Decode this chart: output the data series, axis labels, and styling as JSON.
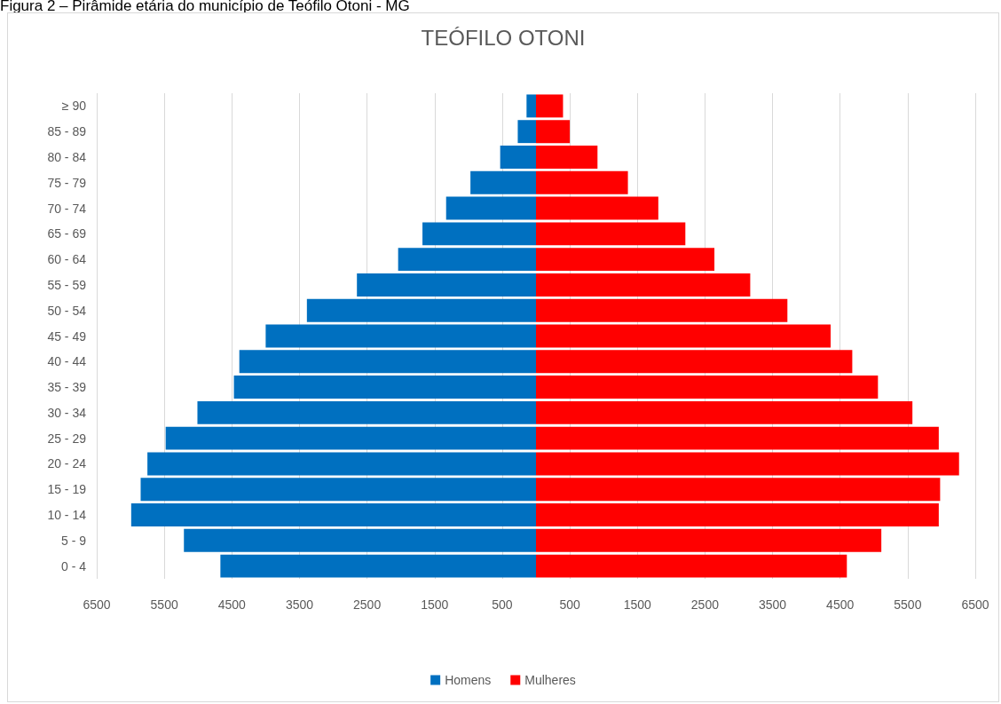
{
  "chart_data": {
    "type": "bar",
    "orientation": "horizontal",
    "title": "TEÓFILO OTONI",
    "annotations": [
      "Figura 2 – Pirâmide etária do município de Teófilo Otoni - MG"
    ],
    "categories": [
      "≥ 90",
      "85 - 89",
      "80 - 84",
      "75 - 79",
      "70 - 74",
      "65 - 69",
      "60 - 64",
      "55 - 59",
      "50 - 54",
      "45 - 49",
      "40 - 44",
      "35 - 39",
      "30 - 34",
      "25 - 29",
      "20 - 24",
      "15 - 19",
      "10 - 14",
      "5 - 9",
      "0 - 4"
    ],
    "series": [
      {
        "name": "Homens",
        "color": "#0070c0",
        "values": [
          -140,
          -270,
          -530,
          -970,
          -1330,
          -1680,
          -2040,
          -2650,
          -3390,
          -4000,
          -4390,
          -4470,
          -5010,
          -5480,
          -5750,
          -5850,
          -5990,
          -5210,
          -4670
        ]
      },
      {
        "name": "Mulheres",
        "color": "#ff0000",
        "values": [
          400,
          500,
          910,
          1360,
          1810,
          2210,
          2640,
          3170,
          3720,
          4360,
          4680,
          5060,
          5570,
          5960,
          6260,
          5980,
          5960,
          5110,
          4600
        ]
      }
    ],
    "xlim": [
      -6500,
      6500
    ],
    "xticks": [
      {
        "value": -6500,
        "label": "6500"
      },
      {
        "value": -5500,
        "label": "5500"
      },
      {
        "value": -4500,
        "label": "4500"
      },
      {
        "value": -3500,
        "label": "3500"
      },
      {
        "value": -2500,
        "label": "2500"
      },
      {
        "value": -1500,
        "label": "1500"
      },
      {
        "value": -500,
        "label": "500"
      },
      500,
      1500,
      2500,
      3500,
      4500,
      5500,
      6500
    ],
    "stacked": true,
    "grid": "x",
    "legend": "bottom"
  }
}
